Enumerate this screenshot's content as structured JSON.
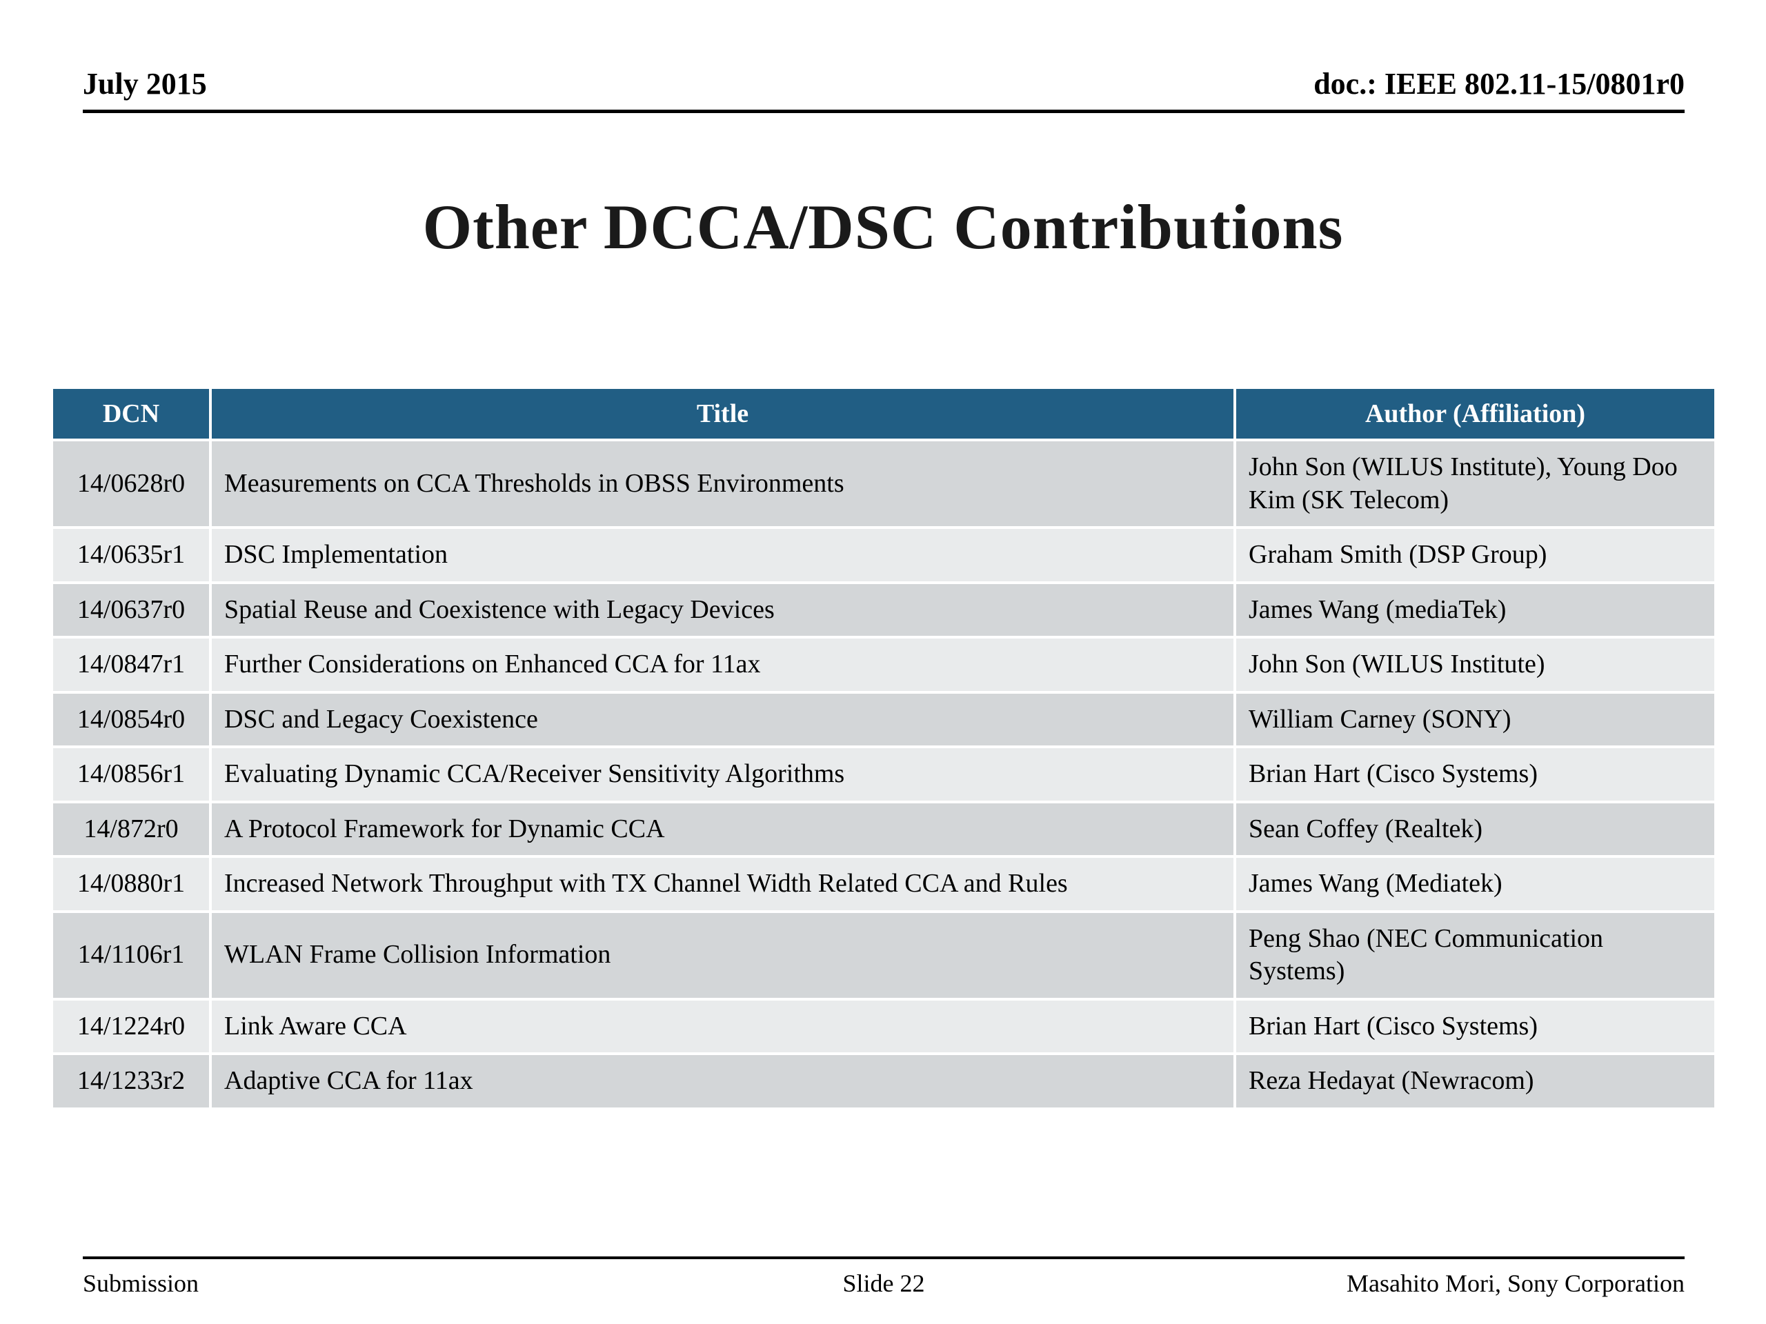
{
  "header": {
    "date": "July 2015",
    "doc": "doc.: IEEE 802.11-15/0801r0"
  },
  "title": "Other DCCA/DSC Contributions",
  "colors": {
    "header-bg": "#215e84",
    "header-text": "#ffffff",
    "row-odd": "#d3d6d8",
    "row-even": "#e9ebec"
  },
  "table": {
    "columns": [
      "DCN",
      "Title",
      "Author (Affiliation)"
    ],
    "rows": [
      {
        "dcn": "14/0628r0",
        "title": "Measurements on CCA Thresholds in OBSS Environments",
        "author": "John Son (WILUS Institute), Young Doo Kim (SK Telecom)"
      },
      {
        "dcn": "14/0635r1",
        "title": "DSC Implementation",
        "author": "Graham Smith (DSP Group)"
      },
      {
        "dcn": "14/0637r0",
        "title": "Spatial Reuse and Coexistence with Legacy Devices",
        "author": "James Wang (mediaTek)"
      },
      {
        "dcn": "14/0847r1",
        "title": "Further Considerations on Enhanced CCA for 11ax",
        "author": "John Son (WILUS Institute)"
      },
      {
        "dcn": "14/0854r0",
        "title": "DSC and Legacy Coexistence",
        "author": "William Carney (SONY)"
      },
      {
        "dcn": "14/0856r1",
        "title": "Evaluating Dynamic CCA/Receiver Sensitivity Algorithms",
        "author": "Brian Hart (Cisco Systems)"
      },
      {
        "dcn": "14/872r0",
        "title": "A Protocol Framework for Dynamic CCA",
        "author": "Sean Coffey (Realtek)"
      },
      {
        "dcn": "14/0880r1",
        "title": "Increased Network Throughput with TX Channel Width Related CCA and Rules",
        "author": "James Wang (Mediatek)"
      },
      {
        "dcn": "14/1106r1",
        "title": "WLAN Frame Collision Information",
        "author": "Peng Shao (NEC Communication Systems)"
      },
      {
        "dcn": "14/1224r0",
        "title": "Link Aware CCA",
        "author": "Brian Hart (Cisco Systems)"
      },
      {
        "dcn": "14/1233r2",
        "title": "Adaptive CCA for 11ax",
        "author": "Reza Hedayat (Newracom)"
      }
    ]
  },
  "footer": {
    "left": "Submission",
    "center": "Slide 22",
    "right": "Masahito Mori, Sony Corporation"
  }
}
